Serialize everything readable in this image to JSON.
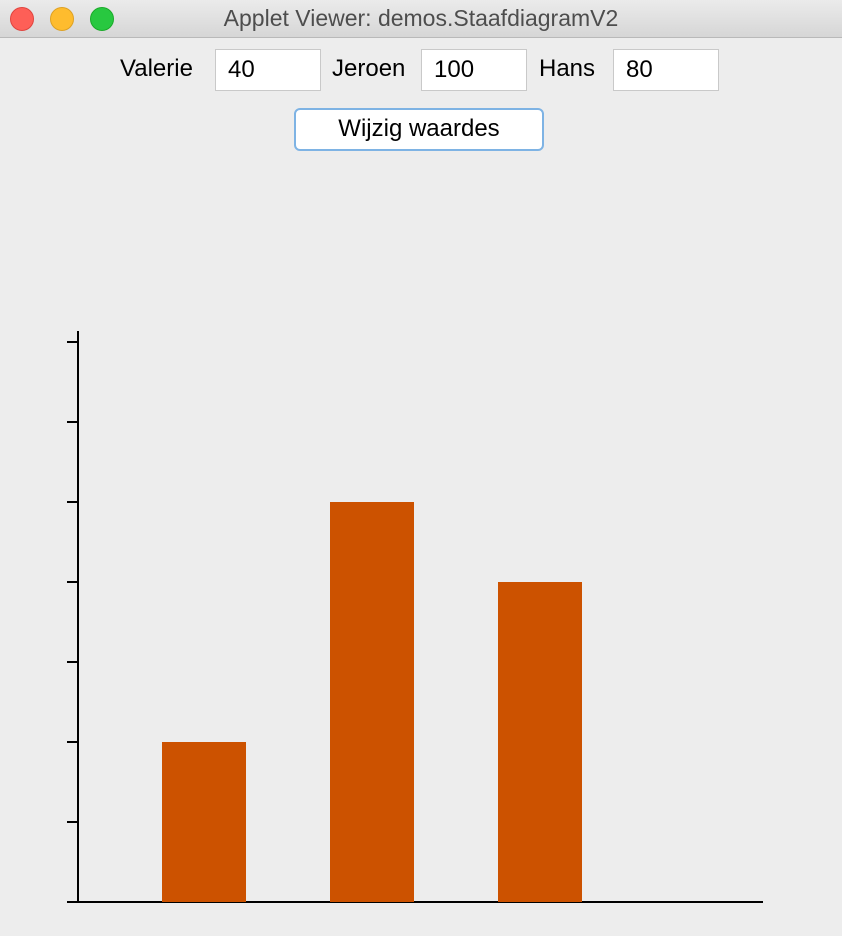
{
  "window": {
    "title": "Applet Viewer: demos.StaafdiagramV2"
  },
  "controls": {
    "fields": [
      {
        "label": "Valerie",
        "value": "40"
      },
      {
        "label": "Jeroen",
        "value": "100"
      },
      {
        "label": "Hans",
        "value": "80"
      }
    ],
    "button_label": "Wijzig waardes"
  },
  "colors": {
    "bar": "#cc5200",
    "axis": "#000000",
    "button_border": "#7eb3e4"
  },
  "chart_data": {
    "type": "bar",
    "categories": [
      "Valerie",
      "Jeroen",
      "Hans"
    ],
    "values": [
      40,
      100,
      80
    ],
    "ylim": [
      0,
      140
    ],
    "y_tick_step": 20,
    "show_tick_labels": false
  }
}
